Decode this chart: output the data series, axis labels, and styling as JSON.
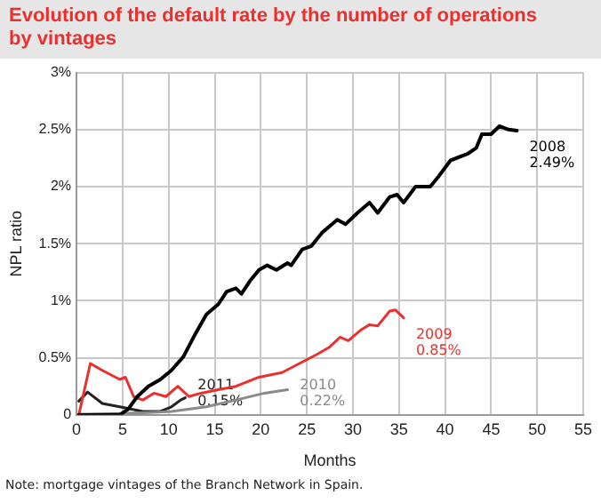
{
  "chart_data": {
    "type": "line",
    "title": "Evolution of the default rate by the number of operations by vintages",
    "xlabel": "Months",
    "ylabel": "NPL ratio",
    "xlim": [
      0,
      55
    ],
    "xticks": [
      0,
      5,
      10,
      15,
      20,
      25,
      30,
      35,
      40,
      45,
      50,
      55
    ],
    "ylim": [
      0,
      3
    ],
    "yticks": [
      0,
      {
        "value": 0.5,
        "label": "0.5%"
      },
      {
        "value": 1,
        "label": "1%"
      },
      {
        "value": 1.5,
        "label": "1.5%"
      },
      {
        "value": 2,
        "label": "2%"
      },
      {
        "value": 2.5,
        "label": "2.5%"
      },
      {
        "value": 3,
        "label": "3%"
      }
    ],
    "grid": true,
    "marker": "none",
    "line_style": "solid",
    "series": [
      {
        "color": "#000000",
        "x": [
          0.25,
          4.7,
          5.6,
          6.6,
          7.8,
          9.1,
          10.3,
          11.6,
          12.9,
          14.1,
          15.4,
          16.3,
          17.3,
          17.9,
          18.8,
          19.8,
          20.7,
          21.7,
          22.9,
          23.3,
          24.5,
          25.5,
          26.7,
          28.3,
          29.2,
          30.5,
          31.8,
          32.7,
          34,
          34.8,
          35.5,
          36.8,
          38.4,
          39.3,
          40.6,
          42.5,
          43.4,
          44,
          45,
          45.9,
          46.9,
          47.8
        ],
        "values": [
          0,
          0,
          0.05,
          0.16,
          0.25,
          0.31,
          0.39,
          0.51,
          0.71,
          0.88,
          0.97,
          1.08,
          1.11,
          1.06,
          1.17,
          1.27,
          1.31,
          1.27,
          1.33,
          1.31,
          1.45,
          1.48,
          1.6,
          1.71,
          1.67,
          1.77,
          1.86,
          1.77,
          1.91,
          1.93,
          1.86,
          2,
          2,
          2.09,
          2.23,
          2.29,
          2.34,
          2.46,
          2.46,
          2.53,
          2.5,
          2.49
        ]
      },
      {
        "color": "#e8312f",
        "x": [
          0.25,
          1.5,
          2.8,
          4.7,
          5.3,
          6.2,
          7.2,
          8.4,
          9.7,
          11,
          12.2,
          13.5,
          15.4,
          17.3,
          19.8,
          22.3,
          24.2,
          26.1,
          27.4,
          28.6,
          29.5,
          30.8,
          31.8,
          32.7,
          34,
          34.6,
          35.5
        ],
        "values": [
          0,
          0.45,
          0.39,
          0.31,
          0.33,
          0.16,
          0.13,
          0.19,
          0.16,
          0.25,
          0.16,
          0.19,
          0.22,
          0.25,
          0.33,
          0.37,
          0.45,
          0.53,
          0.59,
          0.68,
          0.65,
          0.74,
          0.79,
          0.78,
          0.91,
          0.92,
          0.85
        ]
      },
      {
        "color": "#8a8a8a",
        "x": [
          0.25,
          7.8,
          10.3,
          14.1,
          17.3,
          20.4,
          22.9
        ],
        "values": [
          0,
          0.02,
          0.03,
          0.07,
          0.13,
          0.19,
          0.22
        ]
      },
      {
        "color": "#222222",
        "x": [
          0.25,
          1.2,
          2.8,
          4.7,
          7.2,
          9.1,
          10.3,
          11.3,
          11.8
        ],
        "values": [
          0.12,
          0.2,
          0.1,
          0.07,
          0.03,
          0.03,
          0.07,
          0.13,
          0.15
        ]
      }
    ],
    "annotations": [
      {
        "text": "2008\n2.49%",
        "x": 47.8,
        "y": 2.49
      },
      {
        "text": "2009\n0.85%",
        "x": 35.5,
        "y": 0.85
      },
      {
        "text": "2010\n0.22%",
        "x": 22.9,
        "y": 0.22
      },
      {
        "text": "2011\n0.15%",
        "x": 11.8,
        "y": 0.15
      },
      "Note: mortgage vintages of the Branch Network in Spain."
    ]
  }
}
